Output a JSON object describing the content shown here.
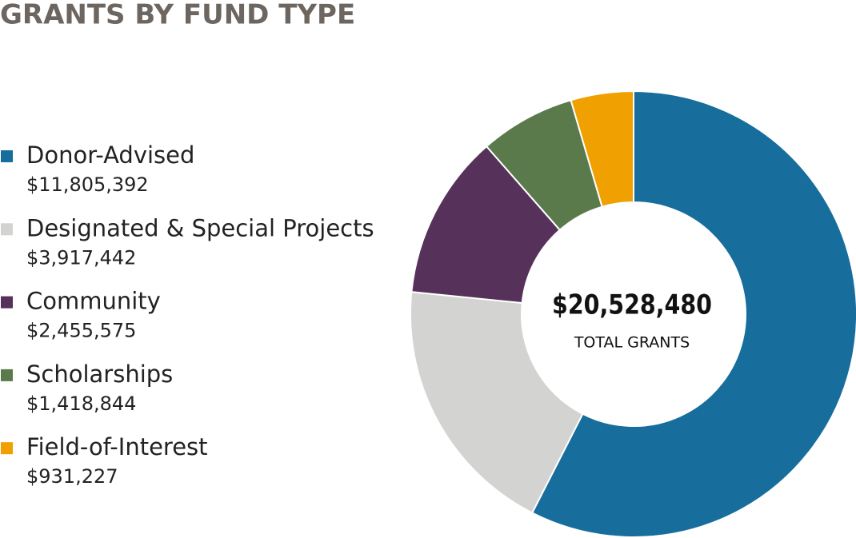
{
  "chart_data": {
    "type": "donut",
    "title": "GRANTS BY FUND TYPE",
    "categories": [
      "Donor-Advised",
      "Designated & Special Projects",
      "Community",
      "Scholarships",
      "Field-of-Interest"
    ],
    "values": [
      11805392,
      3917442,
      2455575,
      1418844,
      931227
    ],
    "value_labels": [
      "$11,805,392",
      "$3,917,442",
      "$2,455,575",
      "$1,418,844",
      "$931,227"
    ],
    "colors": [
      "#176d9c",
      "#d3d3d2",
      "#56325a",
      "#5a7a4c",
      "#f0a000"
    ],
    "center_label": "$20,528,480",
    "center_caption": "TOTAL GRANTS"
  }
}
